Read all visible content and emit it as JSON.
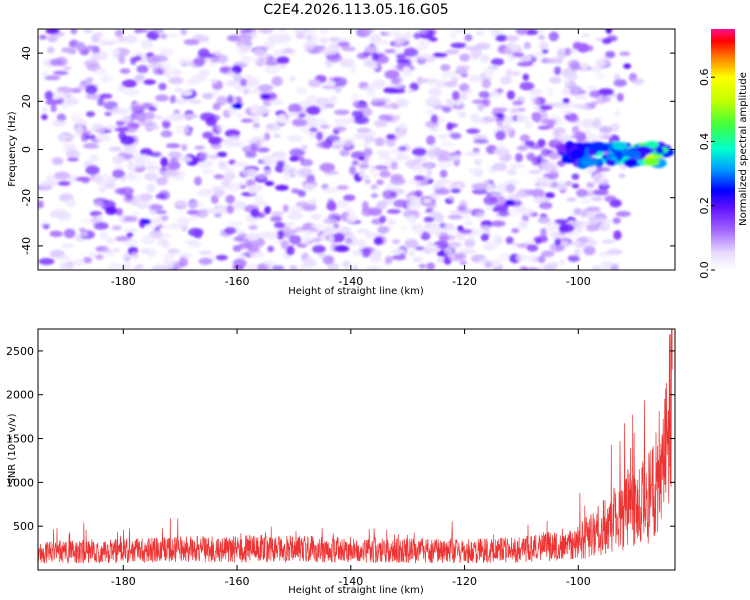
{
  "chart_data": [
    {
      "type": "heatmap",
      "title": "C2E4.2026.113.05.16.G05",
      "xlabel": "Height of straight line (km)",
      "ylabel": "Frequency (Hz)",
      "xlim": [
        -195,
        -83
      ],
      "ylim": [
        -50,
        50
      ],
      "xticks": [
        -180,
        -160,
        -140,
        -120,
        -100
      ],
      "yticks": [
        -40,
        -20,
        0,
        20,
        40
      ],
      "colorbar": {
        "label": "Normalized spectral amplitude",
        "range": [
          0.0,
          0.75
        ],
        "ticks": [
          "0.0",
          "0.2",
          "0.4",
          "0.6"
        ],
        "tick_values": [
          0.0,
          0.2,
          0.4,
          0.6
        ]
      },
      "features": [
        {
          "name": "carrier",
          "x_range": [
            -103,
            -84
          ],
          "frequency": -2,
          "amplitude": 0.55
        },
        {
          "name": "noise",
          "x_range": [
            -195,
            -95
          ],
          "frequency_range": [
            -50,
            50
          ],
          "amplitude": 0.05
        }
      ]
    },
    {
      "type": "line",
      "xlabel": "Height of straight line (km)",
      "ylabel": "SNR (10 * v/v)",
      "xlim": [
        -195,
        -83
      ],
      "ylim": [
        0,
        2750
      ],
      "xticks": [
        -180,
        -160,
        -140,
        -120,
        -100
      ],
      "yticks": [
        500,
        1000,
        1500,
        2000,
        2500
      ],
      "series": [
        {
          "name": "SNR",
          "color": "#ee3333",
          "x": [
            -195,
            -185,
            -175,
            -165,
            -155,
            -145,
            -135,
            -125,
            -115,
            -108,
            -104,
            -100,
            -97,
            -95,
            -93,
            -91,
            -89,
            -87,
            -86,
            -85,
            -84,
            -83.5
          ],
          "y": [
            200,
            210,
            225,
            240,
            245,
            235,
            225,
            215,
            220,
            240,
            280,
            330,
            420,
            520,
            600,
            680,
            760,
            880,
            1050,
            1300,
            1800,
            2450
          ]
        }
      ]
    }
  ]
}
